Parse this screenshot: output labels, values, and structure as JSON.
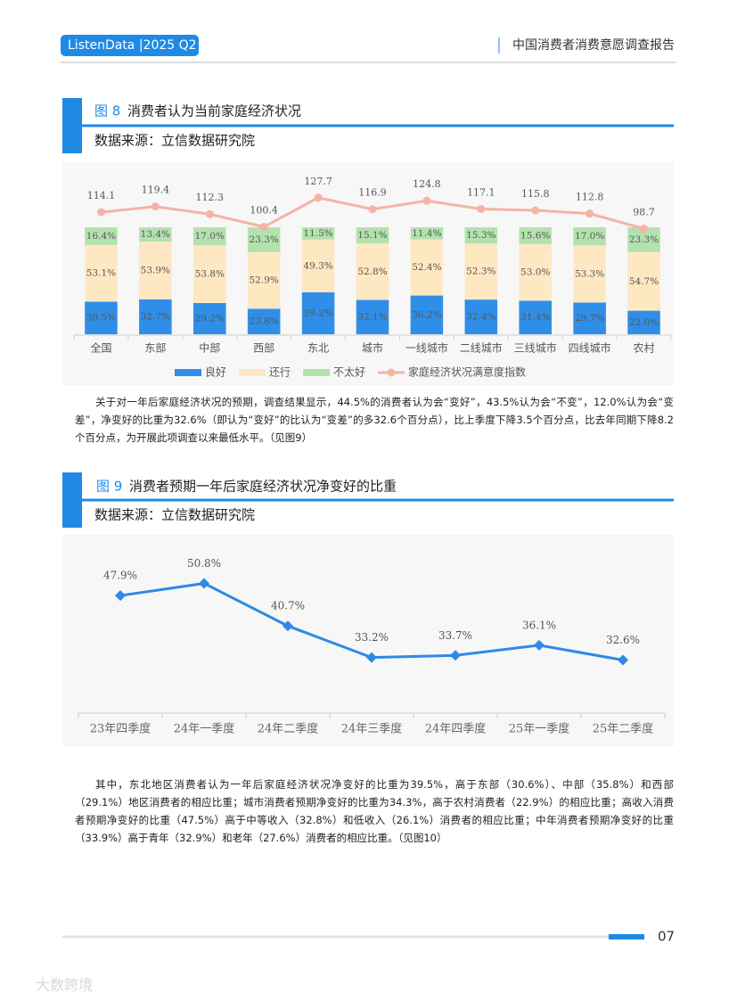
{
  "header": {
    "badge": "ListenData |2025 Q2",
    "report_title": "中国消费者消费意愿调查报告"
  },
  "figures": [
    {
      "number": "图 8",
      "title": "消费者认为当前家庭经济状况",
      "source": "数据来源：立信数据研究院"
    },
    {
      "number": "图 9",
      "title": "消费者预期一年后家庭经济状况净变好的比重",
      "source": "数据来源：立信数据研究院"
    }
  ],
  "paragraphs": [
    "关于对一年后家庭经济状况的预期，调查结果显示，44.5%的消费者认为会“变好”，43.5%认为会“不变”，12.0%认为会“变差”，净变好的比重为32.6%（即认为“变好”的比认为“变差”的多32.6个百分点），比上季度下降3.5个百分点，比去年同期下降8.2个百分点，为开展此项调查以来最低水平。（见图9）",
    "其中，东北地区消费者认为一年后家庭经济状况净变好的比重为39.5%，高于东部（30.6%）、中部（35.8%）和西部（29.1%）地区消费者的相应比重；城市消费者预期净变好的比重为34.3%，高于农村消费者（22.9%）的相应比重；高收入消费者预期净变好的比重（47.5%）高于中等收入（32.8%）和低收入（26.1%）消费者的相应比重；中年消费者预期净变好的比重（33.9%）高于青年（32.9%）和老年（27.6%）消费者的相应比重。（见图10）"
  ],
  "page_number": "07",
  "watermark": "大数跨境",
  "chart_data": [
    {
      "type": "bar",
      "stacked": true,
      "categories": [
        "全国",
        "东部",
        "中部",
        "西部",
        "东北",
        "城市",
        "一线城市",
        "二线城市",
        "三线城市",
        "四线城市",
        "农村"
      ],
      "series": [
        {
          "name": "良好",
          "color": "#2f8fe8",
          "values": [
            30.5,
            32.7,
            29.2,
            23.8,
            39.2,
            32.1,
            36.2,
            32.4,
            31.4,
            29.7,
            22.0
          ],
          "value_labels": [
            "30.5%",
            "32.7%",
            "29.2%",
            "23.8%",
            "39.2%",
            "32.1%",
            "36.2%",
            "32.4%",
            "31.4%",
            "29.7%",
            "22.0%"
          ]
        },
        {
          "name": "还行",
          "color": "#fde8c2",
          "values": [
            53.1,
            53.9,
            53.8,
            52.9,
            49.3,
            52.8,
            52.4,
            52.3,
            53.0,
            53.3,
            54.7
          ],
          "value_labels": [
            "53.1%",
            "53.9%",
            "53.8%",
            "52.9%",
            "49.3%",
            "52.8%",
            "52.4%",
            "52.3%",
            "53.0%",
            "53.3%",
            "54.7%"
          ]
        },
        {
          "name": "不太好",
          "color": "#b4e2ae",
          "values": [
            16.4,
            13.4,
            17.0,
            23.3,
            11.5,
            15.1,
            11.4,
            15.3,
            15.6,
            17.0,
            23.3
          ],
          "value_labels": [
            "16.4%",
            "13.4%",
            "17.0%",
            "23.3%",
            "11.5%",
            "15.1%",
            "11.4%",
            "15.3%",
            "15.6%",
            "17.0%",
            "23.3%"
          ]
        },
        {
          "name": "家庭经济状况满意度指数",
          "type": "line",
          "color": "#f5b3a6",
          "values": [
            114.1,
            119.4,
            112.3,
            100.4,
            127.7,
            116.9,
            124.8,
            117.1,
            115.8,
            112.8,
            98.7
          ]
        }
      ],
      "ylim": [
        0,
        130
      ],
      "legend": "bottom"
    },
    {
      "type": "line",
      "categories": [
        "23年四季度",
        "24年一季度",
        "24年二季度",
        "24年三季度",
        "24年四季度",
        "25年一季度",
        "25年二季度"
      ],
      "values": [
        47.9,
        50.8,
        40.7,
        33.2,
        33.7,
        36.1,
        32.6
      ],
      "value_labels": [
        "47.9%",
        "50.8%",
        "40.7%",
        "33.2%",
        "33.7%",
        "36.1%",
        "32.6%"
      ],
      "color": "#2d8ae6",
      "ylim": [
        20,
        60
      ]
    }
  ]
}
